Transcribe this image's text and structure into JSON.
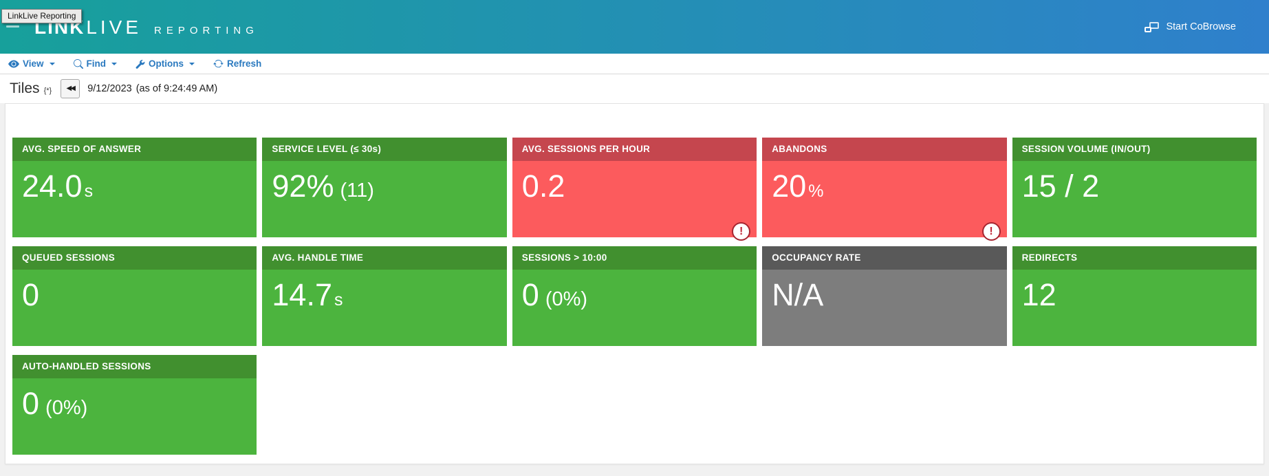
{
  "header": {
    "tooltip": "LinkLive Reporting",
    "logo_link": "LINK",
    "logo_live": "LIVE",
    "logo_reporting": "REPORTING",
    "cobrowse_label": "Start CoBrowse"
  },
  "toolbar": {
    "view": "View",
    "find": "Find",
    "options": "Options",
    "refresh": "Refresh"
  },
  "titlebar": {
    "title": "Tiles",
    "marker": "{*}",
    "rewind_glyph": "◀◀",
    "date": "9/12/2023",
    "as_of": "(as of 9:24:49 AM)"
  },
  "alert_glyph": "!",
  "icons": {
    "menu": "hamburger-menu-icon",
    "view": "eye-icon",
    "find": "search-icon",
    "options": "wrench-icon",
    "refresh": "refresh-icon",
    "rewind": "rewind-icon",
    "cobrowse": "cobrowse-screens-icon",
    "alert": "exclamation-icon"
  },
  "colors": {
    "header-gradient-start": "#17a09b",
    "header-gradient-end": "#2f80cc",
    "toolbar-link": "#2a79bf",
    "tile-green-header": "#41902f",
    "tile-green-body": "#4cb43e",
    "tile-red-header": "#c5464e",
    "tile-red-body": "#fc5b5d",
    "tile-gray-header": "#595959",
    "tile-gray-body": "#7d7d7d",
    "alert-border": "#a62631",
    "alert-text": "#c22535",
    "page-bg": "#f1f1f1"
  },
  "tiles": [
    {
      "label": "AVG. SPEED OF ANSWER",
      "value": "24.0",
      "suffix": "s",
      "variant": "green",
      "alert": false
    },
    {
      "label": "SERVICE LEVEL  (≤ 30s)",
      "value": "92%",
      "secondary": "(11)",
      "variant": "green",
      "alert": false
    },
    {
      "label": "AVG. SESSIONS PER HOUR",
      "value": "0.2",
      "variant": "red",
      "alert": true
    },
    {
      "label": "ABANDONS",
      "value": "20",
      "suffix": "%",
      "variant": "red",
      "alert": true
    },
    {
      "label": "SESSION VOLUME (IN/OUT)",
      "value": "15 / 2",
      "variant": "green",
      "alert": false
    },
    {
      "label": "QUEUED SESSIONS",
      "value": "0",
      "variant": "green",
      "alert": false
    },
    {
      "label": "AVG. HANDLE TIME",
      "value": "14.7",
      "suffix": "s",
      "variant": "green",
      "alert": false
    },
    {
      "label": "SESSIONS > 10:00",
      "value": "0",
      "secondary": "(0%)",
      "variant": "green",
      "alert": false
    },
    {
      "label": "OCCUPANCY RATE",
      "value": "N/A",
      "variant": "gray",
      "alert": false
    },
    {
      "label": "REDIRECTS",
      "value": "12",
      "variant": "green",
      "alert": false
    },
    {
      "label": "AUTO-HANDLED SESSIONS",
      "value": "0",
      "secondary": "(0%)",
      "variant": "green",
      "alert": false
    }
  ]
}
